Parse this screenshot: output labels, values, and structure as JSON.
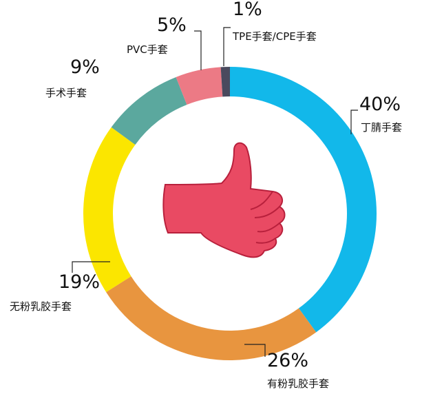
{
  "chart_data": {
    "type": "donut",
    "categories": [
      "丁腈手套",
      "有粉乳胶手套",
      "无粉乳胶手套",
      "手术手套",
      "PVC手套",
      "TPE手套/CPE手套"
    ],
    "values": [
      40,
      26,
      19,
      9,
      5,
      1
    ],
    "value_labels": [
      "40%",
      "26%",
      "19%",
      "9%",
      "5%",
      "1%"
    ],
    "colors": [
      "#12b8ea",
      "#e8953f",
      "#fbe600",
      "#5ba89e",
      "#ec7a85",
      "#4a4a5e"
    ]
  }
}
